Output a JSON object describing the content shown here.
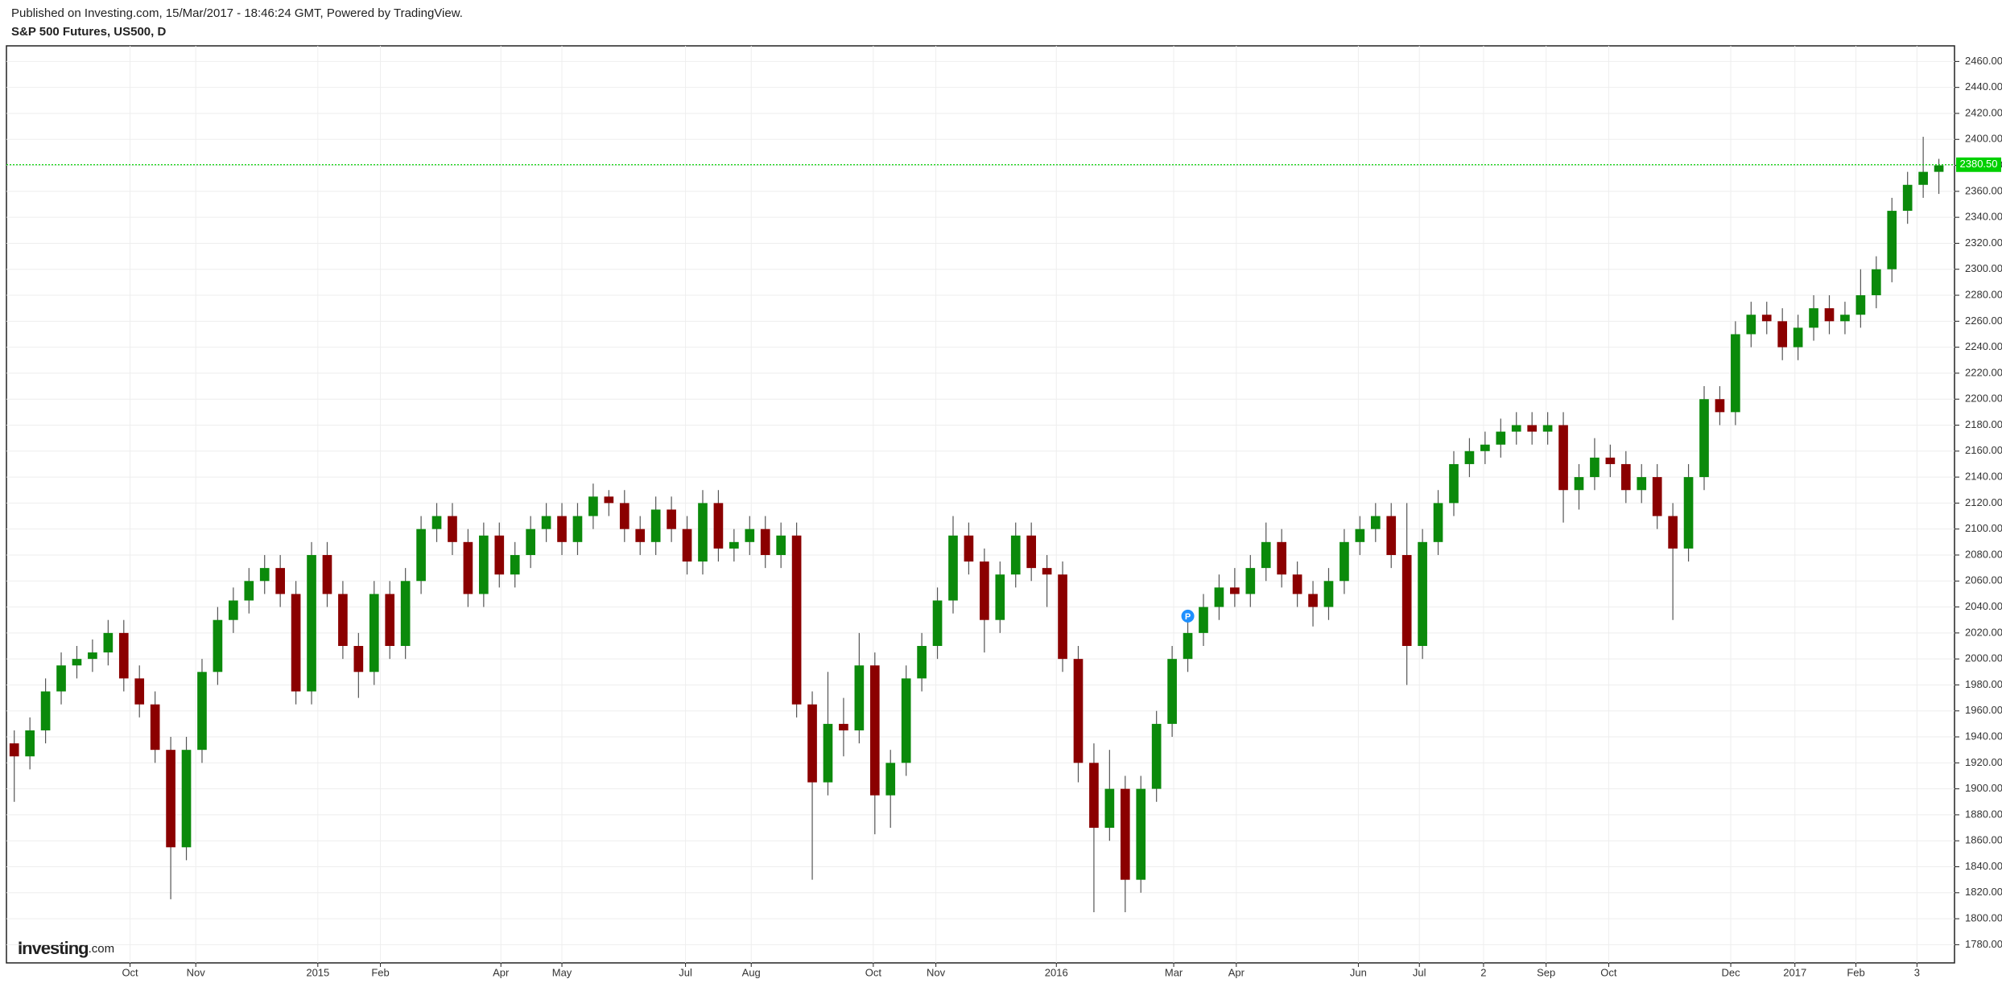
{
  "header": {
    "published": "Published on Investing.com, 15/Mar/2017 - 18:46:24 GMT, Powered by TradingView.",
    "symbol": "S&P 500 Futures, US500, D"
  },
  "logo": {
    "name": "Investing",
    "suffix": ".com"
  },
  "chart_data": {
    "type": "candlestick",
    "open": [
      1935,
      1925,
      1945,
      1975,
      1995,
      2000,
      2005,
      2020,
      1985,
      1965,
      1930,
      1855,
      1930,
      1990,
      2030,
      2045,
      2060,
      2070,
      2050,
      1975,
      2080,
      2050,
      2010,
      1990,
      2050,
      2010,
      2060,
      2100,
      2110,
      2090,
      2050,
      2095,
      2065,
      2080,
      2100,
      2110,
      2090,
      2110,
      2125,
      2120,
      2100,
      2090,
      2115,
      2100,
      2075,
      2120,
      2085,
      2090,
      2100,
      2080,
      2095,
      1965,
      1905,
      1950,
      1945,
      1995,
      1895,
      1920,
      1985,
      2010,
      2045,
      2095,
      2075,
      2030,
      2065,
      2095,
      2070,
      2065,
      2000,
      1920,
      1870,
      1900,
      1830,
      1900,
      1950,
      2000,
      2020,
      2040,
      2055,
      2050,
      2070,
      2090,
      2065,
      2050,
      2040,
      2060,
      2090,
      2100,
      2110,
      2080,
      2010,
      2090,
      2120,
      2150,
      2160,
      2165,
      2175,
      2180,
      2175,
      2180,
      2130,
      2140,
      2155,
      2150,
      2130,
      2140,
      2110,
      2085,
      2140,
      2200,
      2190,
      2250,
      2265,
      2260,
      2240,
      2255,
      2270,
      2260,
      2265,
      2280,
      2300,
      2345,
      2365,
      2375
    ],
    "high": [
      1945,
      1955,
      1985,
      2005,
      2010,
      2015,
      2030,
      2030,
      1995,
      1975,
      1940,
      1940,
      2000,
      2040,
      2055,
      2070,
      2080,
      2080,
      2060,
      2090,
      2090,
      2060,
      2020,
      2060,
      2060,
      2070,
      2110,
      2120,
      2120,
      2100,
      2105,
      2105,
      2090,
      2110,
      2120,
      2120,
      2120,
      2135,
      2130,
      2130,
      2110,
      2125,
      2125,
      2110,
      2130,
      2130,
      2100,
      2110,
      2110,
      2105,
      2105,
      1975,
      1990,
      1970,
      2020,
      2005,
      1930,
      1995,
      2020,
      2055,
      2110,
      2105,
      2085,
      2075,
      2105,
      2105,
      2080,
      2075,
      2010,
      1935,
      1930,
      1910,
      1910,
      1960,
      2010,
      2030,
      2050,
      2065,
      2070,
      2080,
      2105,
      2100,
      2075,
      2060,
      2070,
      2100,
      2110,
      2120,
      2120,
      2120,
      2100,
      2130,
      2160,
      2170,
      2175,
      2185,
      2190,
      2190,
      2190,
      2190,
      2150,
      2170,
      2165,
      2160,
      2150,
      2150,
      2120,
      2150,
      2210,
      2210,
      2260,
      2275,
      2275,
      2270,
      2265,
      2280,
      2280,
      2275,
      2300,
      2310,
      2355,
      2375,
      2402,
      2385
    ],
    "low": [
      1890,
      1915,
      1935,
      1965,
      1985,
      1990,
      1995,
      1975,
      1955,
      1920,
      1815,
      1845,
      1920,
      1980,
      2020,
      2035,
      2050,
      2040,
      1965,
      1965,
      2040,
      2000,
      1970,
      1980,
      2000,
      2000,
      2050,
      2090,
      2080,
      2040,
      2040,
      2055,
      2055,
      2070,
      2090,
      2080,
      2080,
      2100,
      2110,
      2090,
      2080,
      2080,
      2090,
      2065,
      2065,
      2075,
      2075,
      2080,
      2070,
      2070,
      1955,
      1830,
      1895,
      1925,
      1935,
      1865,
      1870,
      1910,
      1975,
      2000,
      2035,
      2065,
      2005,
      2020,
      2055,
      2060,
      2040,
      1990,
      1905,
      1805,
      1860,
      1805,
      1820,
      1890,
      1940,
      1990,
      2010,
      2030,
      2040,
      2040,
      2060,
      2055,
      2040,
      2025,
      2030,
      2050,
      2080,
      2090,
      2070,
      1980,
      2000,
      2080,
      2110,
      2140,
      2150,
      2155,
      2165,
      2165,
      2165,
      2105,
      2115,
      2130,
      2140,
      2120,
      2120,
      2100,
      2030,
      2075,
      2130,
      2180,
      2180,
      2240,
      2250,
      2230,
      2230,
      2245,
      2250,
      2250,
      2255,
      2270,
      2290,
      2335,
      2355,
      2358
    ],
    "close": [
      1925,
      1945,
      1975,
      1995,
      2000,
      2005,
      2020,
      1985,
      1965,
      1930,
      1855,
      1930,
      1990,
      2030,
      2045,
      2060,
      2070,
      2050,
      1975,
      2080,
      2050,
      2010,
      1990,
      2050,
      2010,
      2060,
      2100,
      2110,
      2090,
      2050,
      2095,
      2065,
      2080,
      2100,
      2110,
      2090,
      2110,
      2125,
      2120,
      2100,
      2090,
      2115,
      2100,
      2075,
      2120,
      2085,
      2090,
      2100,
      2080,
      2095,
      1965,
      1905,
      1950,
      1945,
      1995,
      1895,
      1920,
      1985,
      2010,
      2045,
      2095,
      2075,
      2030,
      2065,
      2095,
      2070,
      2065,
      2000,
      1920,
      1870,
      1900,
      1830,
      1900,
      1950,
      2000,
      2020,
      2040,
      2055,
      2050,
      2070,
      2090,
      2065,
      2050,
      2040,
      2060,
      2090,
      2100,
      2110,
      2080,
      2010,
      2090,
      2120,
      2150,
      2160,
      2165,
      2175,
      2180,
      2175,
      2180,
      2130,
      2140,
      2155,
      2150,
      2130,
      2140,
      2110,
      2085,
      2140,
      2200,
      2190,
      2250,
      2265,
      2260,
      2240,
      2255,
      2270,
      2260,
      2265,
      2280,
      2300,
      2345,
      2365,
      2375,
      2380
    ],
    "up_color": "#0b8a0b",
    "down_color": "#8b0000",
    "wick_color": "#555555",
    "xlim": [
      -0.5,
      124
    ],
    "xticks": [
      {
        "value": 7.4,
        "label": "Oct"
      },
      {
        "value": 11.6,
        "label": "Nov"
      },
      {
        "value": 19.4,
        "label": "2015"
      },
      {
        "value": 23.4,
        "label": "Feb"
      },
      {
        "value": 31.1,
        "label": "Apr"
      },
      {
        "value": 35.0,
        "label": "May"
      },
      {
        "value": 42.9,
        "label": "Jul"
      },
      {
        "value": 47.1,
        "label": "Aug"
      },
      {
        "value": 54.9,
        "label": "Oct"
      },
      {
        "value": 58.9,
        "label": "Nov"
      },
      {
        "value": 66.6,
        "label": "2016"
      },
      {
        "value": 74.1,
        "label": "Mar"
      },
      {
        "value": 78.1,
        "label": "Apr"
      },
      {
        "value": 85.9,
        "label": "Jun"
      },
      {
        "value": 89.8,
        "label": "Jul"
      },
      {
        "value": 93.9,
        "label": "2"
      },
      {
        "value": 97.9,
        "label": "Sep"
      },
      {
        "value": 101.9,
        "label": "Oct"
      },
      {
        "value": 109.7,
        "label": "Dec"
      },
      {
        "value": 113.8,
        "label": "2017"
      },
      {
        "value": 117.7,
        "label": "Feb"
      },
      {
        "value": 121.6,
        "label": "3"
      }
    ],
    "ylim": [
      1766,
      2472
    ],
    "yticks": [
      {
        "value": 1780,
        "label": "1780.00"
      },
      {
        "value": 1800,
        "label": "1800.00"
      },
      {
        "value": 1820,
        "label": "1820.00"
      },
      {
        "value": 1840,
        "label": "1840.00"
      },
      {
        "value": 1860,
        "label": "1860.00"
      },
      {
        "value": 1880,
        "label": "1880.00"
      },
      {
        "value": 1900,
        "label": "1900.00"
      },
      {
        "value": 1920,
        "label": "1920.00"
      },
      {
        "value": 1940,
        "label": "1940.00"
      },
      {
        "value": 1960,
        "label": "1960.00"
      },
      {
        "value": 1980,
        "label": "1980.00"
      },
      {
        "value": 2000,
        "label": "2000.00"
      },
      {
        "value": 2020,
        "label": "2020.00"
      },
      {
        "value": 2040,
        "label": "2040.00"
      },
      {
        "value": 2060,
        "label": "2060.00"
      },
      {
        "value": 2080,
        "label": "2080.00"
      },
      {
        "value": 2100,
        "label": "2100.00"
      },
      {
        "value": 2120,
        "label": "2120.00"
      },
      {
        "value": 2140,
        "label": "2140.00"
      },
      {
        "value": 2160,
        "label": "2160.00"
      },
      {
        "value": 2180,
        "label": "2180.00"
      },
      {
        "value": 2200,
        "label": "2200.00"
      },
      {
        "value": 2220,
        "label": "2220.00"
      },
      {
        "value": 2240,
        "label": "2240.00"
      },
      {
        "value": 2260,
        "label": "2260.00"
      },
      {
        "value": 2280,
        "label": "2280.00"
      },
      {
        "value": 2300,
        "label": "2300.00"
      },
      {
        "value": 2320,
        "label": "2320.00"
      },
      {
        "value": 2340,
        "label": "2340.00"
      },
      {
        "value": 2360,
        "label": "2360.00"
      },
      {
        "value": 2380,
        "label": "2380.00"
      },
      {
        "value": 2400,
        "label": "2400.00"
      },
      {
        "value": 2420,
        "label": "2420.00"
      },
      {
        "value": 2440,
        "label": "2440.00"
      },
      {
        "value": 2460,
        "label": "2460.00"
      }
    ],
    "grid": true,
    "last_price": {
      "value": 2380.5,
      "label": "2380.50",
      "color": "#00d000"
    },
    "annotations": [
      {
        "text": "P",
        "x": 75,
        "y": 2033,
        "color": "#1e90ff"
      }
    ]
  }
}
